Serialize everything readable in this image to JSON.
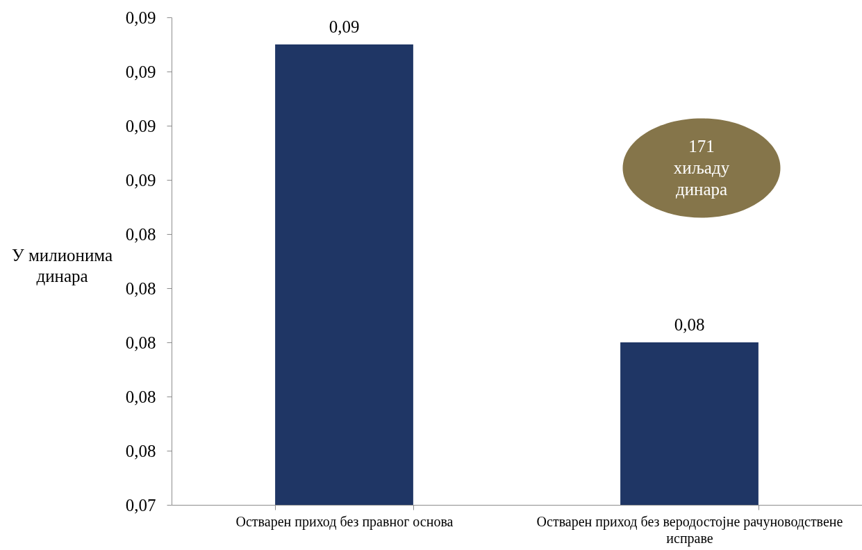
{
  "chart_data": {
    "type": "bar",
    "ylabel": "У милионима\nдинара",
    "categories": [
      "Остварен приход без правног основа",
      "Остварен приход без веродостојне рачуноводствене исправе"
    ],
    "values": [
      0.091,
      0.08
    ],
    "color": "#1f3665",
    "value_labels": [
      "0,09",
      "0,08"
    ],
    "ylim": [
      0.074,
      0.092
    ],
    "yticks": [
      {
        "value": 0.074,
        "label": "0,07"
      },
      {
        "value": 0.076,
        "label": "0,08"
      },
      {
        "value": 0.078,
        "label": "0,08"
      },
      {
        "value": 0.08,
        "label": "0,08"
      },
      {
        "value": 0.082,
        "label": "0,08"
      },
      {
        "value": 0.084,
        "label": "0,08"
      },
      {
        "value": 0.086,
        "label": "0,09"
      },
      {
        "value": 0.088,
        "label": "0,09"
      },
      {
        "value": 0.09,
        "label": "0,09"
      },
      {
        "value": 0.092,
        "label": "0,09"
      }
    ],
    "annotations": [
      "171\nхиљаду\nдинара"
    ]
  }
}
